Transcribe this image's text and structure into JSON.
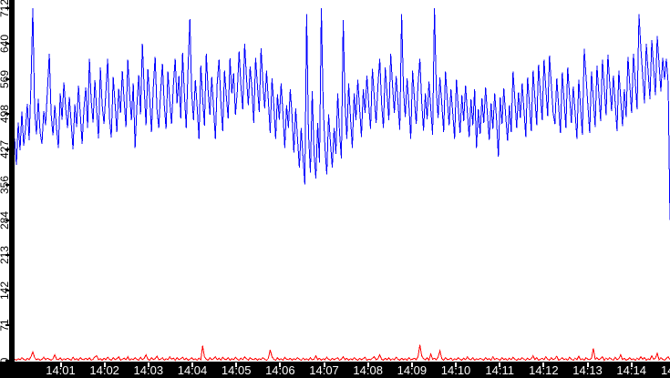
{
  "window": {
    "background": "#ffffff"
  },
  "colors": {
    "series1": "#0000ff",
    "series2": "#ff0000",
    "axis": "#000000",
    "y_label_color": "#000000",
    "x_band_background": "#000000",
    "x_label_color": "#ffffff"
  },
  "chart_data": {
    "type": "line",
    "title": "",
    "xlabel": "",
    "ylabel": "",
    "grid": false,
    "legend": false,
    "y_axis": {
      "min": 0,
      "max": 712,
      "tick_values": [
        712,
        640,
        569,
        498,
        427,
        356,
        284,
        213,
        142,
        71,
        0
      ]
    },
    "x_axis": {
      "tick_labels": [
        "14:01",
        "14:02",
        "14:03",
        "14:04",
        "14:05",
        "14:06",
        "14:07",
        "14:08",
        "14:09",
        "14:10",
        "14:11",
        "14:12",
        "14:13",
        "14:14"
      ],
      "partial_last_label": "14"
    },
    "series": [
      {
        "name": "blue-series",
        "color": "#0000ff",
        "values": [
          449,
          396,
          481,
          425,
          503,
          434,
          469,
          519,
          445,
          560,
          712,
          505,
          457,
          529,
          461,
          438,
          504,
          476,
          548,
          620,
          498,
          455,
          516,
          468,
          430,
          540,
          487,
          562,
          509,
          470,
          533,
          480,
          427,
          518,
          472,
          556,
          498,
          438,
          509,
          552,
          470,
          610,
          524,
          481,
          567,
          505,
          449,
          592,
          516,
          478,
          540,
          610,
          490,
          451,
          573,
          520,
          462,
          549,
          500,
          585,
          525,
          472,
          608,
          539,
          486,
          560,
          430,
          515,
          577,
          498,
          640,
          548,
          476,
          589,
          531,
          462,
          552,
          614,
          508,
          470,
          543,
          600,
          517,
          468,
          584,
          525,
          478,
          556,
          610,
          520,
          575,
          489,
          622,
          538,
          470,
          591,
          690,
          540,
          486,
          567,
          512,
          448,
          596,
          530,
          475,
          620,
          545,
          497,
          573,
          510,
          448,
          562,
          608,
          522,
          464,
          586,
          534,
          489,
          611,
          540,
          580,
          497,
          544,
          625,
          555,
          508,
          640,
          572,
          516,
          594,
          548,
          480,
          612,
          556,
          502,
          631,
          560,
          510,
          586,
          525,
          460,
          570,
          516,
          448,
          538,
          487,
          560,
          500,
          430,
          516,
          470,
          548,
          495,
          420,
          510,
          448,
          390,
          470,
          410,
          356,
          700,
          460,
          380,
          545,
          420,
          368,
          480,
          400,
          712,
          520,
          430,
          376,
          498,
          440,
          390,
          470,
          418,
          540,
          460,
          408,
          688,
          520,
          448,
          560,
          490,
          430,
          540,
          486,
          568,
          510,
          452,
          548,
          500,
          576,
          518,
          468,
          590,
          535,
          480,
          556,
          610,
          520,
          470,
          592,
          540,
          486,
          620,
          556,
          500,
          575,
          522,
          466,
          700,
          548,
          492,
          570,
          516,
          448,
          586,
          530,
          478,
          558,
          610,
          524,
          465,
          540,
          488,
          564,
          508,
          456,
          712,
          550,
          490,
          572,
          518,
          462,
          584,
          528,
          476,
          548,
          500,
          448,
          568,
          512,
          460,
          536,
          484,
          556,
          502,
          452,
          528,
          476,
          548,
          430,
          508,
          458,
          530,
          480,
          552,
          498,
          446,
          520,
          468,
          540,
          488,
          412,
          532,
          478,
          550,
          496,
          444,
          516,
          462,
          584,
          528,
          470,
          542,
          490,
          560,
          506,
          452,
          572,
          518,
          464,
          586,
          530,
          476,
          598,
          540,
          486,
          608,
          550,
          494,
          616,
          558,
          500,
          478,
          570,
          515,
          460,
          582,
          526,
          470,
          592,
          536,
          480,
          554,
          502,
          448,
          568,
          512,
          456,
          630,
          574,
          516,
          460,
          584,
          528,
          472,
          596,
          540,
          484,
          608,
          552,
          496,
          618,
          560,
          504,
          576,
          520,
          464,
          586,
          530,
          474,
          548,
          492,
          614,
          556,
          500,
          620,
          564,
          508,
          700,
          632,
          576,
          520,
          640,
          584,
          528,
          648,
          592,
          536,
          656,
          600,
          544,
          612,
          568,
          610,
          560,
          284
        ]
      },
      {
        "name": "red-series",
        "color": "#ff0000",
        "values": [
          3,
          1,
          4,
          2,
          6,
          3,
          1,
          5,
          2,
          8,
          18,
          6,
          2,
          4,
          1,
          3,
          7,
          2,
          5,
          3,
          1,
          4,
          12,
          3,
          2,
          6,
          1,
          4,
          2,
          5,
          3,
          1,
          7,
          2,
          4,
          1,
          6,
          3,
          2,
          5,
          2,
          6,
          1,
          3,
          8,
          10,
          2,
          4,
          1,
          5,
          2,
          7,
          3,
          1,
          6,
          2,
          4,
          8,
          1,
          3,
          5,
          2,
          8,
          1,
          4,
          2,
          6,
          3,
          1,
          7,
          2,
          5,
          12,
          3,
          1,
          6,
          2,
          4,
          9,
          2,
          3,
          6,
          1,
          4,
          2,
          8,
          3,
          5,
          1,
          6,
          2,
          4,
          7,
          2,
          5,
          1,
          3,
          6,
          2,
          4,
          1,
          5,
          2,
          30,
          8,
          3,
          1,
          6,
          2,
          4,
          8,
          2,
          5,
          1,
          7,
          3,
          2,
          6,
          1,
          4,
          2,
          7,
          3,
          1,
          5,
          2,
          8,
          4,
          1,
          6,
          3,
          2,
          5,
          1,
          4,
          2,
          6,
          3,
          1,
          5,
          22,
          8,
          3,
          1,
          6,
          2,
          4,
          1,
          7,
          3,
          2,
          5,
          1,
          4,
          2,
          6,
          3,
          1,
          5,
          2,
          4,
          1,
          6,
          2,
          3,
          10,
          2,
          5,
          1,
          4,
          2,
          7,
          3,
          1,
          5,
          2,
          4,
          6,
          1,
          3,
          8,
          2,
          5,
          1,
          4,
          2,
          6,
          3,
          1,
          5,
          2,
          4,
          7,
          1,
          3,
          2,
          5,
          8,
          2,
          4,
          12,
          3,
          1,
          5,
          2,
          6,
          1,
          4,
          2,
          7,
          3,
          1,
          5,
          2,
          4,
          1,
          6,
          2,
          3,
          5,
          2,
          8,
          32,
          10,
          4,
          2,
          6,
          1,
          14,
          3,
          5,
          2,
          7,
          20,
          4,
          1,
          6,
          2,
          3,
          5,
          1,
          4,
          2,
          6,
          3,
          1,
          5,
          2,
          8,
          3,
          2,
          6,
          1,
          4,
          2,
          5,
          3,
          1,
          6,
          2,
          4,
          1,
          8,
          2,
          5,
          3,
          1,
          6,
          2,
          4,
          1,
          5,
          2,
          7,
          3,
          1,
          4,
          2,
          6,
          3,
          1,
          5,
          2,
          4,
          10,
          2,
          6,
          1,
          3,
          5,
          2,
          8,
          3,
          1,
          6,
          2,
          4,
          9,
          1,
          3,
          6,
          2,
          4,
          1,
          7,
          3,
          1,
          5,
          2,
          9,
          2,
          4,
          1,
          6,
          3,
          2,
          5,
          25,
          3,
          6,
          2,
          4,
          8,
          1,
          5,
          2,
          6,
          3,
          1,
          7,
          2,
          4,
          12,
          2,
          5,
          1,
          3,
          6,
          2,
          4,
          1,
          5,
          2,
          8,
          3,
          6,
          1,
          4,
          2,
          10,
          3,
          5,
          15,
          2,
          6,
          3,
          1,
          5,
          8,
          2
        ]
      }
    ]
  }
}
